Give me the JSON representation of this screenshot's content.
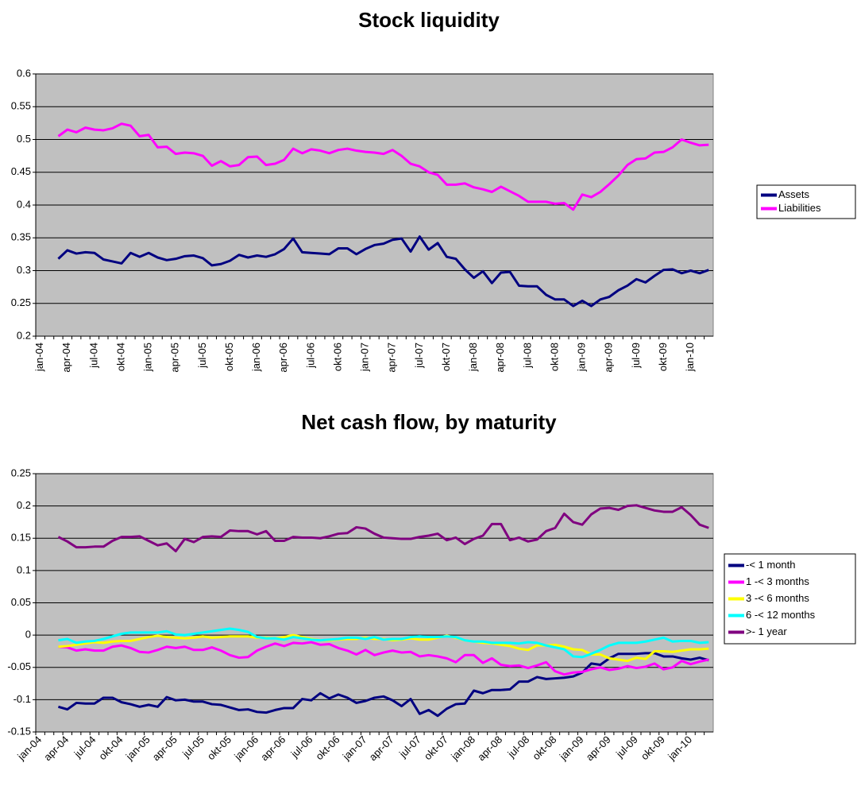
{
  "chart_data": [
    {
      "type": "line",
      "title": "Stock liquidity",
      "categories": [
        "jan-04",
        null,
        null,
        "apr-04",
        null,
        null,
        "jul-04",
        null,
        null,
        "okt-04",
        null,
        null,
        "jan-05",
        null,
        null,
        "apr-05",
        null,
        null,
        "jul-05",
        null,
        null,
        "okt-05",
        null,
        null,
        "jan-06",
        null,
        null,
        "apr-06",
        null,
        null,
        "jul-06",
        null,
        null,
        "okt-06",
        null,
        null,
        "jan-07",
        null,
        null,
        "apr-07",
        null,
        null,
        "jul-07",
        null,
        null,
        "okt-07",
        null,
        null,
        "jan-08",
        null,
        null,
        "apr-08",
        null,
        null,
        "jul-08",
        null,
        null,
        "okt-08",
        null,
        null,
        "jan-09",
        null,
        null,
        "apr-09",
        null,
        null,
        "jul-09",
        null,
        null,
        "okt-09",
        null,
        null,
        "jan-10",
        null,
        null
      ],
      "ylim": [
        0.2,
        0.6
      ],
      "yticks": [
        0.2,
        0.25,
        0.3,
        0.35,
        0.4,
        0.45,
        0.5,
        0.55,
        0.6
      ],
      "grid": true,
      "series": [
        {
          "name": "Assets",
          "color": "#000080",
          "values": [
            null,
            null,
            0.318,
            0.331,
            0.326,
            0.328,
            0.327,
            0.317,
            0.314,
            0.311,
            0.327,
            0.321,
            0.327,
            0.32,
            0.316,
            0.318,
            0.322,
            0.323,
            0.319,
            0.308,
            0.31,
            0.315,
            0.324,
            0.32,
            0.323,
            0.321,
            0.325,
            0.333,
            0.349,
            0.328,
            0.327,
            0.326,
            0.325,
            0.334,
            0.334,
            0.325,
            0.333,
            0.339,
            0.341,
            0.347,
            0.349,
            0.329,
            0.352,
            0.332,
            0.342,
            0.321,
            0.318,
            0.302,
            0.289,
            0.299,
            0.281,
            0.297,
            0.298,
            0.277,
            0.276,
            0.276,
            0.263,
            0.256,
            0.256,
            0.246,
            0.254,
            0.246,
            0.256,
            0.26,
            0.27,
            0.277,
            0.287,
            0.282,
            0.292,
            0.301,
            0.302,
            0.296,
            0.3,
            0.296,
            0.301
          ]
        },
        {
          "name": "Liabilities",
          "color": "#ff00ff",
          "values": [
            null,
            null,
            0.505,
            0.515,
            0.511,
            0.518,
            0.515,
            0.514,
            0.517,
            0.524,
            0.521,
            0.505,
            0.507,
            0.488,
            0.489,
            0.478,
            0.48,
            0.479,
            0.475,
            0.46,
            0.467,
            0.459,
            0.461,
            0.473,
            0.474,
            0.461,
            0.463,
            0.469,
            0.486,
            0.479,
            0.485,
            0.483,
            0.479,
            0.484,
            0.486,
            0.483,
            0.481,
            0.48,
            0.478,
            0.484,
            0.475,
            0.463,
            0.459,
            0.45,
            0.446,
            0.431,
            0.431,
            0.433,
            0.427,
            0.424,
            0.42,
            0.428,
            0.421,
            0.414,
            0.405,
            0.405,
            0.405,
            0.402,
            0.403,
            0.393,
            0.416,
            0.412,
            0.42,
            0.432,
            0.445,
            0.461,
            0.47,
            0.471,
            0.48,
            0.481,
            0.488,
            0.5,
            0.495,
            0.491,
            0.492
          ]
        }
      ]
    },
    {
      "type": "line",
      "title": "Net cash flow, by maturity",
      "categories": [
        "jan-04",
        null,
        null,
        "apr-04",
        null,
        null,
        "jul-04",
        null,
        null,
        "okt-04",
        null,
        null,
        "jan-05",
        null,
        null,
        "apr-05",
        null,
        null,
        "jul-05",
        null,
        null,
        "okt-05",
        null,
        null,
        "jan-06",
        null,
        null,
        "apr-06",
        null,
        null,
        "jul-06",
        null,
        null,
        "okt-06",
        null,
        null,
        "jan-07",
        null,
        null,
        "apr-07",
        null,
        null,
        "jul-07",
        null,
        null,
        "okt-07",
        null,
        null,
        "jan-08",
        null,
        null,
        "apr-08",
        null,
        null,
        "jul-08",
        null,
        null,
        "okt-08",
        null,
        null,
        "jan-09",
        null,
        null,
        "apr-09",
        null,
        null,
        "jul-09",
        null,
        null,
        "okt-09",
        null,
        null,
        "jan-10",
        null,
        null
      ],
      "ylim": [
        -0.15,
        0.25
      ],
      "yticks": [
        -0.15,
        -0.1,
        -0.05,
        0,
        0.05,
        0.1,
        0.15,
        0.2,
        0.25
      ],
      "grid": true,
      "series": [
        {
          "name": "-< 1 month",
          "color": "#000080",
          "values": [
            null,
            null,
            -0.111,
            -0.115,
            -0.105,
            -0.106,
            -0.106,
            -0.097,
            -0.097,
            -0.104,
            -0.107,
            -0.111,
            -0.108,
            -0.111,
            -0.096,
            -0.101,
            -0.1,
            -0.103,
            -0.103,
            -0.107,
            -0.108,
            -0.112,
            -0.116,
            -0.115,
            -0.119,
            -0.12,
            -0.116,
            -0.113,
            -0.113,
            -0.099,
            -0.101,
            -0.09,
            -0.098,
            -0.092,
            -0.097,
            -0.105,
            -0.102,
            -0.097,
            -0.095,
            -0.101,
            -0.11,
            -0.099,
            -0.122,
            -0.116,
            -0.125,
            -0.114,
            -0.107,
            -0.106,
            -0.086,
            -0.09,
            -0.085,
            -0.085,
            -0.084,
            -0.072,
            -0.072,
            -0.065,
            -0.068,
            -0.067,
            -0.066,
            -0.064,
            -0.058,
            -0.044,
            -0.046,
            -0.036,
            -0.029,
            -0.029,
            -0.029,
            -0.028,
            -0.028,
            -0.033,
            -0.033,
            -0.036,
            -0.038,
            -0.035,
            -0.039
          ]
        },
        {
          "name": "1 -< 3 months",
          "color": "#ff00ff",
          "values": [
            null,
            null,
            -0.018,
            -0.019,
            -0.024,
            -0.022,
            -0.024,
            -0.024,
            -0.018,
            -0.016,
            -0.02,
            -0.026,
            -0.027,
            -0.023,
            -0.018,
            -0.02,
            -0.018,
            -0.023,
            -0.023,
            -0.019,
            -0.024,
            -0.031,
            -0.035,
            -0.034,
            -0.024,
            -0.018,
            -0.013,
            -0.017,
            -0.012,
            -0.013,
            -0.011,
            -0.015,
            -0.014,
            -0.02,
            -0.024,
            -0.03,
            -0.023,
            -0.031,
            -0.027,
            -0.024,
            -0.027,
            -0.026,
            -0.033,
            -0.031,
            -0.033,
            -0.036,
            -0.042,
            -0.031,
            -0.031,
            -0.043,
            -0.036,
            -0.046,
            -0.048,
            -0.047,
            -0.051,
            -0.047,
            -0.042,
            -0.056,
            -0.061,
            -0.058,
            -0.057,
            -0.053,
            -0.05,
            -0.054,
            -0.052,
            -0.048,
            -0.051,
            -0.049,
            -0.044,
            -0.053,
            -0.05,
            -0.04,
            -0.045,
            -0.041,
            -0.038
          ]
        },
        {
          "name": "3 -< 6 months",
          "color": "#ffff00",
          "values": [
            null,
            null,
            -0.018,
            -0.017,
            -0.015,
            -0.013,
            -0.011,
            -0.012,
            -0.01,
            -0.009,
            -0.009,
            -0.006,
            -0.003,
            -0.001,
            -0.003,
            -0.004,
            -0.005,
            -0.004,
            -0.002,
            -0.004,
            -0.003,
            -0.002,
            -0.002,
            -0.002,
            -0.004,
            -0.004,
            -0.005,
            -0.003,
            0,
            -0.003,
            -0.006,
            -0.008,
            -0.008,
            -0.007,
            -0.006,
            -0.006,
            -0.004,
            -0.006,
            -0.006,
            -0.008,
            -0.007,
            -0.005,
            -0.007,
            -0.007,
            -0.004,
            -0.001,
            -0.004,
            -0.008,
            -0.01,
            -0.012,
            -0.013,
            -0.015,
            -0.017,
            -0.021,
            -0.023,
            -0.016,
            -0.016,
            -0.015,
            -0.018,
            -0.022,
            -0.023,
            -0.03,
            -0.03,
            -0.036,
            -0.038,
            -0.04,
            -0.035,
            -0.037,
            -0.025,
            -0.025,
            -0.026,
            -0.024,
            -0.022,
            -0.022,
            -0.021
          ]
        },
        {
          "name": "6 -< 12 months",
          "color": "#00ffff",
          "values": [
            null,
            null,
            -0.008,
            -0.006,
            -0.012,
            -0.01,
            -0.009,
            -0.006,
            -0.002,
            0.002,
            0.004,
            0.004,
            0.004,
            0.004,
            0.006,
            0.001,
            0,
            0.002,
            0.004,
            0.006,
            0.008,
            0.01,
            0.008,
            0.005,
            -0.003,
            -0.005,
            -0.005,
            -0.007,
            -0.003,
            -0.005,
            -0.007,
            -0.008,
            -0.007,
            -0.006,
            -0.004,
            -0.004,
            -0.006,
            -0.003,
            -0.007,
            -0.006,
            -0.006,
            -0.003,
            -0.002,
            -0.003,
            -0.003,
            -0.002,
            -0.003,
            -0.008,
            -0.01,
            -0.01,
            -0.012,
            -0.012,
            -0.012,
            -0.013,
            -0.011,
            -0.012,
            -0.016,
            -0.019,
            -0.022,
            -0.033,
            -0.034,
            -0.029,
            -0.023,
            -0.016,
            -0.012,
            -0.012,
            -0.012,
            -0.01,
            -0.007,
            -0.004,
            -0.01,
            -0.009,
            -0.009,
            -0.012,
            -0.011
          ]
        },
        {
          "name": ">- 1 year",
          "color": "#800080",
          "values": [
            null,
            null,
            0.152,
            0.145,
            0.136,
            0.136,
            0.137,
            0.137,
            0.146,
            0.152,
            0.152,
            0.153,
            0.146,
            0.139,
            0.142,
            0.13,
            0.149,
            0.144,
            0.152,
            0.153,
            0.152,
            0.162,
            0.161,
            0.161,
            0.156,
            0.161,
            0.146,
            0.146,
            0.152,
            0.151,
            0.151,
            0.15,
            0.153,
            0.157,
            0.158,
            0.167,
            0.165,
            0.157,
            0.151,
            0.15,
            0.149,
            0.149,
            0.152,
            0.154,
            0.157,
            0.147,
            0.151,
            0.141,
            0.149,
            0.154,
            0.172,
            0.172,
            0.147,
            0.151,
            0.145,
            0.148,
            0.161,
            0.166,
            0.188,
            0.175,
            0.171,
            0.187,
            0.196,
            0.197,
            0.194,
            0.2,
            0.201,
            0.197,
            0.193,
            0.191,
            0.191,
            0.198,
            0.186,
            0.171,
            0.166
          ]
        }
      ]
    }
  ]
}
